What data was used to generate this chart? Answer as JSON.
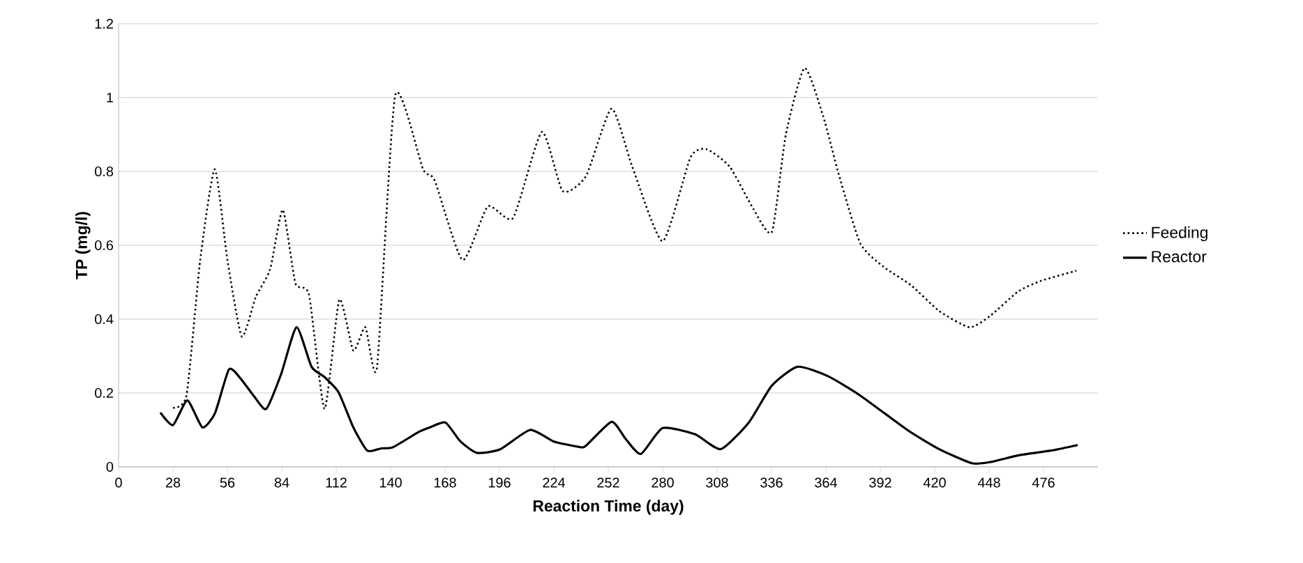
{
  "chart_data": {
    "type": "line",
    "xlabel": "Reaction Time (day)",
    "ylabel": "TP (mg/l)",
    "xlim": [
      0,
      504
    ],
    "xticks": [
      0,
      28,
      56,
      84,
      112,
      140,
      168,
      196,
      224,
      252,
      280,
      308,
      336,
      364,
      392,
      420,
      448,
      476
    ],
    "ylim": [
      0,
      1.2
    ],
    "yticks": [
      0,
      0.2,
      0.4,
      0.6,
      0.8,
      1,
      1.2
    ],
    "grid": "y",
    "legend": "right",
    "marker": "none",
    "series": [
      {
        "name": "Feeding",
        "color": "#000000",
        "line_style": "dotted",
        "x": [
          28,
          35,
          42,
          49.5,
          56,
          63.4,
          70.6,
          78,
          84.5,
          91,
          98,
          106,
          113.6,
          120.8,
          127,
          133,
          142.4,
          156.7,
          162.7,
          177,
          190,
          203,
          217.8,
          228.5,
          240.5,
          253.7,
          264.4,
          280,
          294.3,
          302.7,
          314.6,
          326.6,
          336.2,
          343.4,
          353,
          362.5,
          370.9,
          381.7,
          393.6,
          408,
          422.3,
          437.9,
          448.6,
          463,
          474.9,
          492.9
        ],
        "values": [
          0.16,
          0.195,
          0.56,
          0.806,
          0.56,
          0.353,
          0.46,
          0.535,
          0.696,
          0.497,
          0.466,
          0.157,
          0.453,
          0.315,
          0.378,
          0.27,
          1.007,
          0.806,
          0.775,
          0.56,
          0.705,
          0.674,
          0.907,
          0.747,
          0.787,
          0.97,
          0.812,
          0.611,
          0.838,
          0.86,
          0.812,
          0.699,
          0.636,
          0.9,
          1.08,
          0.951,
          0.787,
          0.605,
          0.542,
          0.491,
          0.422,
          0.378,
          0.409,
          0.475,
          0.504,
          0.531
        ]
      },
      {
        "name": "Reactor",
        "color": "#000000",
        "line_style": "solid",
        "x": [
          21.5,
          28,
          35.4,
          43.1,
          49.6,
          56.8,
          62.8,
          70,
          76,
          83.7,
          91.6,
          99.3,
          106,
          113.2,
          120.8,
          128,
          135.2,
          141.2,
          154.3,
          160.3,
          168.2,
          175.9,
          184.3,
          196.2,
          211.8,
          223.8,
          236.9,
          240.5,
          253.7,
          260.9,
          268.8,
          280,
          296.7,
          309.9,
          324.3,
          336.2,
          349.4,
          364.9,
          381.7,
          405.6,
          422.3,
          439.1,
          448.6,
          463,
          479.7,
          493.6
        ],
        "values": [
          0.147,
          0.113,
          0.18,
          0.107,
          0.145,
          0.264,
          0.239,
          0.189,
          0.157,
          0.252,
          0.378,
          0.271,
          0.243,
          0.202,
          0.107,
          0.044,
          0.05,
          0.053,
          0.094,
          0.107,
          0.12,
          0.069,
          0.038,
          0.047,
          0.1,
          0.069,
          0.054,
          0.057,
          0.122,
          0.076,
          0.035,
          0.105,
          0.088,
          0.048,
          0.12,
          0.22,
          0.271,
          0.246,
          0.193,
          0.101,
          0.048,
          0.01,
          0.013,
          0.031,
          0.044,
          0.059
        ]
      }
    ]
  }
}
